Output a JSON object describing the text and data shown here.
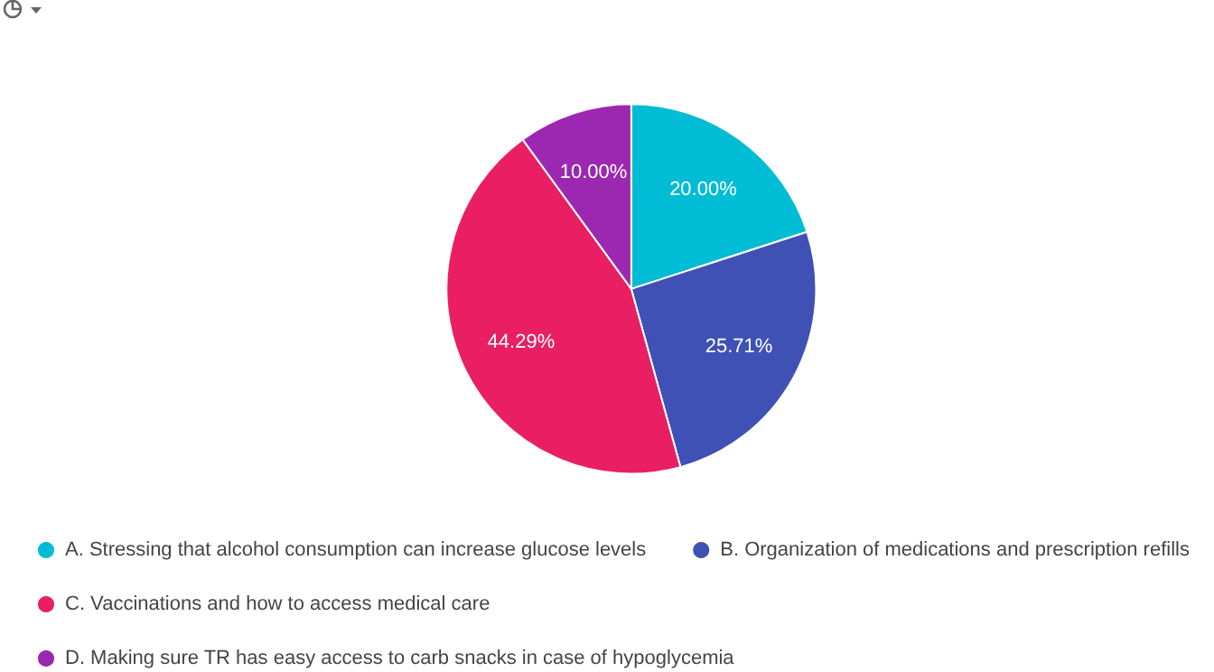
{
  "chart_data": {
    "type": "pie",
    "categories": [
      "A. Stressing that alcohol consumption can increase glucose levels",
      "B. Organization of medications and prescription refills",
      "C. Vaccinations and how to access medical care",
      "D. Making sure TR has easy access to carb snacks in case of hypoglycemia"
    ],
    "values": [
      20.0,
      25.71,
      44.29,
      10.0
    ],
    "colors": [
      "#00bcd4",
      "#3f51b5",
      "#e91e63",
      "#9c27b0"
    ],
    "value_labels": [
      "20.00%",
      "25.71%",
      "44.29%",
      "10.00%"
    ],
    "legend": "bottom"
  }
}
